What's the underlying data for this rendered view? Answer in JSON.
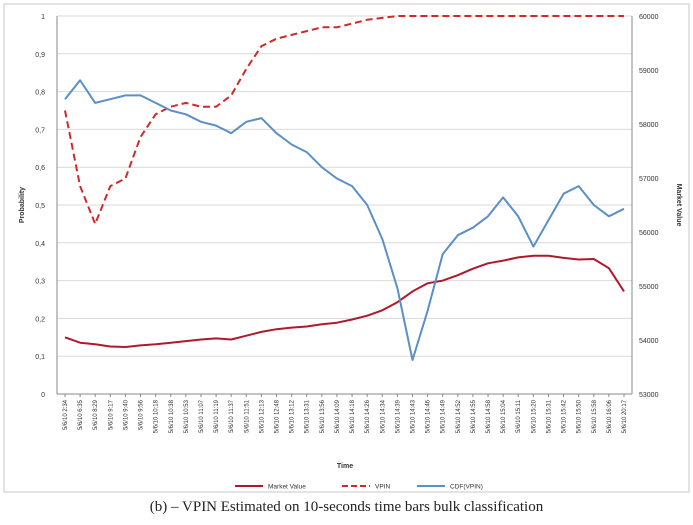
{
  "chart_data": {
    "type": "line",
    "xlabel": "Time",
    "ylabel_left": "Probability",
    "ylabel_right": "Market Value",
    "y_left_range": [
      0,
      1
    ],
    "y_left_ticks": [
      "0",
      "0,1",
      "0,2",
      "0,3",
      "0,4",
      "0,5",
      "0,6",
      "0,7",
      "0,8",
      "0,9",
      "1"
    ],
    "y_right_range": [
      53000,
      60000
    ],
    "y_right_ticks": [
      "53000",
      "54000",
      "55000",
      "56000",
      "57000",
      "58000",
      "59000",
      "60000"
    ],
    "x_tick_labels": [
      "5/6/10 2:34",
      "5/6/10 6:35",
      "5/6/10 8:29",
      "5/6/10 9:17",
      "5/6/10 9:40",
      "5/6/10 9:56",
      "5/6/10 10:18",
      "5/6/10 10:38",
      "5/6/10 10:53",
      "5/6/10 11:07",
      "5/6/10 11:19",
      "5/6/10 11:37",
      "5/6/10 11:51",
      "5/6/10 12:13",
      "5/6/10 12:48",
      "5/6/10 13:12",
      "5/6/10 13:31",
      "5/6/10 13:56",
      "5/6/10 14:09",
      "5/6/10 14:18",
      "5/6/10 14:26",
      "5/6/10 14:34",
      "5/6/10 14:39",
      "5/6/10 14:43",
      "5/6/10 14:46",
      "5/6/10 14:49",
      "5/6/10 14:52",
      "5/6/10 14:55",
      "5/6/10 14:58",
      "5/6/10 15:04",
      "5/6/10 15:11",
      "5/6/10 15:20",
      "5/6/10 15:31",
      "5/6/10 15:42",
      "5/6/10 15:50",
      "5/6/10 15:58",
      "5/6/10 16:06",
      "5/6/10 20:17"
    ],
    "grid": true,
    "legend_position": "bottom",
    "series": [
      {
        "name": "Market Value",
        "axis": "right",
        "style": "solid",
        "color": "#b2182b",
        "values": [
          54050,
          53950,
          53920,
          53880,
          53870,
          53900,
          53920,
          53950,
          53980,
          54010,
          54030,
          54010,
          54080,
          54150,
          54200,
          54230,
          54250,
          54290,
          54320,
          54380,
          54450,
          54550,
          54700,
          54900,
          55050,
          55100,
          55200,
          55320,
          55420,
          55470,
          55530,
          55560,
          55560,
          55520,
          55490,
          55500,
          55330,
          54900
        ]
      },
      {
        "name": "VPIN",
        "axis": "left",
        "style": "dashed",
        "color": "#cf2a2a",
        "values": [
          0.75,
          0.55,
          0.45,
          0.55,
          0.57,
          0.68,
          0.74,
          0.76,
          0.77,
          0.76,
          0.76,
          0.79,
          0.86,
          0.92,
          0.94,
          0.95,
          0.96,
          0.97,
          0.97,
          0.98,
          0.99,
          0.995,
          1.0,
          1.0,
          1.0,
          1.0,
          1.0,
          1.0,
          1.0,
          1.0,
          1.0,
          1.0,
          1.0,
          1.0,
          1.0,
          1.0,
          1.0,
          1.0
        ]
      },
      {
        "name": "CDF(VPIN)",
        "axis": "left",
        "style": "solid",
        "color": "#5b8fc7",
        "values": [
          0.78,
          0.83,
          0.77,
          0.78,
          0.79,
          0.79,
          0.77,
          0.75,
          0.74,
          0.72,
          0.71,
          0.69,
          0.72,
          0.73,
          0.69,
          0.66,
          0.64,
          0.6,
          0.57,
          0.55,
          0.5,
          0.41,
          0.28,
          0.09,
          0.22,
          0.37,
          0.42,
          0.44,
          0.47,
          0.52,
          0.47,
          0.39,
          0.46,
          0.53,
          0.55,
          0.5,
          0.47,
          0.49
        ]
      }
    ]
  },
  "caption": "(b) – VPIN Estimated on 10-seconds time bars bulk classification"
}
